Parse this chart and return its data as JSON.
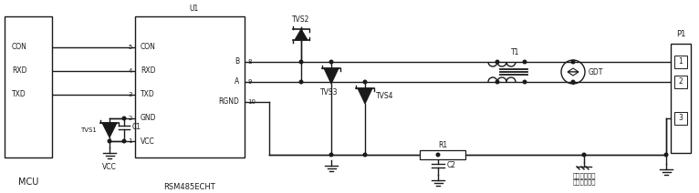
{
  "bg_color": "#ffffff",
  "line_color": "#1a1a1a",
  "lw": 1.0,
  "figsize": [
    7.66,
    2.12
  ],
  "dpi": 100,
  "labels": {
    "MCU": "MCU",
    "U1": "U1",
    "RSM485ECHT": "RSM485ECHT",
    "CON_mcu": "CON",
    "RXD_mcu": "RXD",
    "TXD_mcu": "TXD",
    "CON_u1": "CON",
    "RXD_u1": "RXD",
    "TXD_u1": "TXD",
    "GND_u1": "GND",
    "VCC_u1": "VCC",
    "TVS1": "TVS1",
    "C1": "C1",
    "VCC": "VCC",
    "B": "B",
    "A": "A",
    "RGND": "RGND",
    "pin5": "5",
    "pin4": "4",
    "pin3": "3",
    "pin2": "2",
    "pin1": "1",
    "pin8": "8",
    "pin9": "9",
    "pin10": "10",
    "TVS2": "TVS2",
    "TVS3": "TVS3",
    "TVS4": "TVS4",
    "T1": "T1",
    "GDT": "GDT",
    "R1": "R1",
    "C2": "C2",
    "P1": "P1",
    "p1_1": "1",
    "p1_2": "2",
    "p1_3": "3",
    "shield": "双绞线屏蔽层\n可靠连接大地"
  }
}
